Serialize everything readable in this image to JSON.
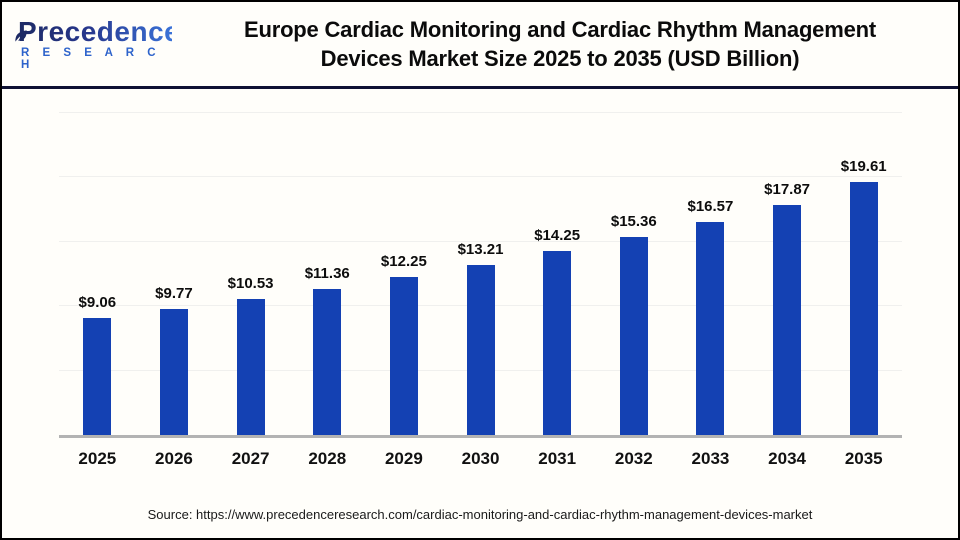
{
  "header": {
    "logo": {
      "primary": "Precedence",
      "secondary": "R E S E A R C H"
    },
    "title_line1": "Europe Cardiac Monitoring and Cardiac Rhythm Management",
    "title_line2": "Devices Market Size 2025 to 2035 (USD Billion)"
  },
  "chart_data": {
    "type": "bar",
    "title": "Europe Cardiac Monitoring and Cardiac Rhythm Management Devices Market Size 2025 to 2035 (USD Billion)",
    "categories": [
      "2025",
      "2026",
      "2027",
      "2028",
      "2029",
      "2030",
      "2031",
      "2032",
      "2033",
      "2034",
      "2035"
    ],
    "values": [
      9.06,
      9.77,
      10.53,
      11.36,
      12.25,
      13.21,
      14.25,
      15.36,
      16.57,
      17.87,
      19.61
    ],
    "value_labels": [
      "$9.06",
      "$9.77",
      "$10.53",
      "$11.36",
      "$12.25",
      "$13.21",
      "$14.25",
      "$15.36",
      "$16.57",
      "$17.87",
      "$19.61"
    ],
    "unit": "USD Billion",
    "xlabel": "",
    "ylabel": "",
    "ylim": [
      0,
      25
    ],
    "gridline_step": 5,
    "grid": true,
    "legend": false
  },
  "footer": {
    "source": "Source: https://www.precedenceresearch.com/cardiac-monitoring-and-cardiac-rhythm-management-devices-market"
  },
  "colors": {
    "bar": "#1441b3",
    "divider": "#0e1133",
    "grid": "#f0f0ee",
    "baseline": "#b3b3b3",
    "logo_gradient_start": "#1d2a64",
    "logo_gradient_end": "#3a72d8",
    "research_blue": "#2d63cb",
    "title_text": "#0b0b0b",
    "border": "#000000"
  }
}
